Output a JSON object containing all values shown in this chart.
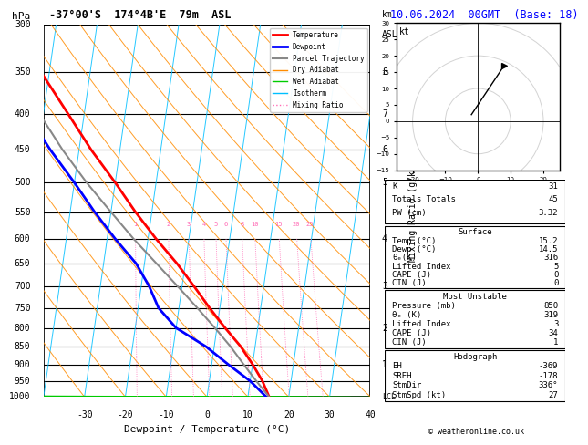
{
  "title_left": "-37°00'S  174°4B'E  79m  ASL",
  "title_right": "10.06.2024  00GMT  (Base: 18)",
  "xlabel": "Dewpoint / Temperature (°C)",
  "ylabel_left": "hPa",
  "ylabel_right_mid": "Mixing Ratio (g/kg)",
  "pressure_ticks": [
    300,
    350,
    400,
    450,
    500,
    550,
    600,
    650,
    700,
    750,
    800,
    850,
    900,
    950,
    1000
  ],
  "temp_range": [
    -40,
    40
  ],
  "temp_ticks": [
    -30,
    -20,
    -10,
    0,
    10,
    20,
    30,
    40
  ],
  "km_ticks": [
    1,
    2,
    3,
    4,
    5,
    6,
    7,
    8
  ],
  "km_pressures": [
    900,
    800,
    700,
    600,
    500,
    450,
    400,
    350
  ],
  "mixing_ratio_values": [
    1,
    2,
    3,
    4,
    5,
    6,
    8,
    10,
    15,
    20,
    25
  ],
  "mixing_ratio_label_pressure": 580,
  "temp_profile": {
    "pressures": [
      1000,
      950,
      900,
      850,
      800,
      750,
      700,
      650,
      600,
      550,
      500,
      450,
      400,
      350,
      300
    ],
    "temps": [
      15.2,
      13.0,
      10.0,
      6.5,
      2.0,
      -2.5,
      -7.0,
      -12.0,
      -18.0,
      -24.0,
      -30.0,
      -37.0,
      -44.0,
      -52.0,
      -58.0
    ]
  },
  "dewp_profile": {
    "pressures": [
      1000,
      950,
      900,
      850,
      800,
      750,
      700,
      650,
      600,
      550,
      500,
      450,
      400,
      350,
      300
    ],
    "temps": [
      14.5,
      10.0,
      4.0,
      -2.0,
      -10.0,
      -15.0,
      -18.0,
      -22.0,
      -28.0,
      -34.0,
      -40.0,
      -47.0,
      -54.0,
      -60.0,
      -65.0
    ]
  },
  "parcel_profile": {
    "pressures": [
      1000,
      950,
      900,
      850,
      800,
      750,
      700,
      650,
      600,
      550,
      500,
      450,
      400,
      350,
      300
    ],
    "temps": [
      15.2,
      11.5,
      7.8,
      4.0,
      -0.5,
      -5.5,
      -11.0,
      -17.0,
      -23.5,
      -30.0,
      -37.0,
      -44.0,
      -51.0,
      -58.0,
      -63.0
    ]
  },
  "background_color": "#ffffff",
  "isotherm_color": "#00bfff",
  "dry_adiabat_color": "#ff8c00",
  "wet_adiabat_color": "#00cc00",
  "mixing_ratio_color": "#ff69b4",
  "temp_line_color": "#ff0000",
  "dewp_line_color": "#0000ff",
  "parcel_color": "#888888",
  "stats": {
    "K": 31,
    "Totals_Totals": 45,
    "PW_cm": 3.32,
    "Surface_Temp": 15.2,
    "Surface_Dewp": 14.5,
    "Surface_theta_e": 316,
    "Surface_LI": 5,
    "Surface_CAPE": 0,
    "Surface_CIN": 0,
    "MU_Pressure": 850,
    "MU_theta_e": 319,
    "MU_LI": 3,
    "MU_CAPE": 34,
    "MU_CIN": 1,
    "EH": -369,
    "SREH": -178,
    "StmDir": "336°",
    "StmSpd_kt": 27
  }
}
